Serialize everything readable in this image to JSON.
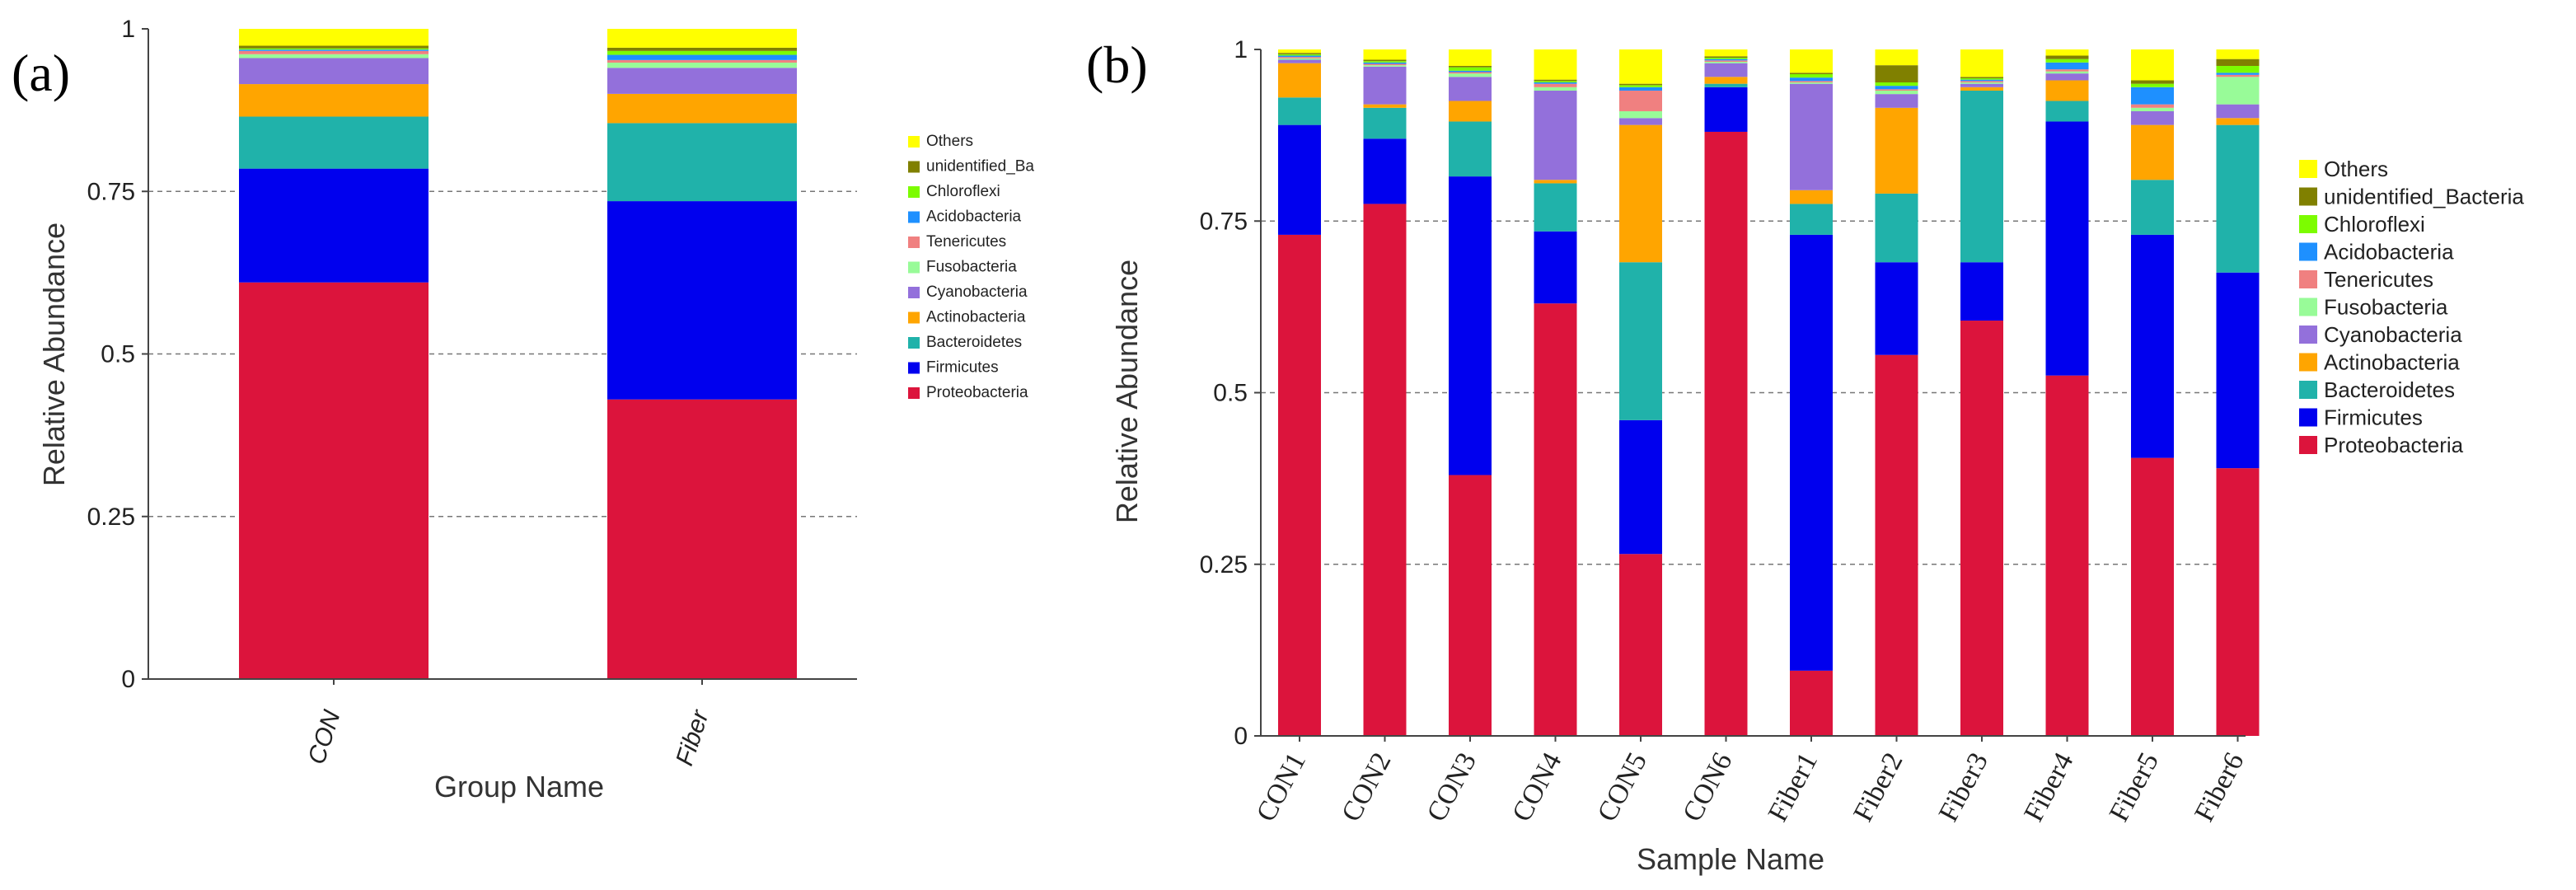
{
  "chart_data": [
    {
      "panel": "(a)",
      "type": "bar",
      "stacked": true,
      "xlabel": "Group Name",
      "ylabel": "Relative Abundance",
      "ylim": [
        0,
        1
      ],
      "yticks": [
        "0",
        "0.25",
        "0.5",
        "0.75",
        "1"
      ],
      "categories": [
        "CON",
        "Fiber"
      ],
      "grid": "horizontal dashed",
      "legend_position": "right",
      "legend": [
        "Others",
        "unidentified_Ba",
        "Chloroflexi",
        "Acidobacteria",
        "Tenericutes",
        "Fusobacteria",
        "Cyanobacteria",
        "Actinobacteria",
        "Bacteroidetes",
        "Firmicutes",
        "Proteobacteria"
      ],
      "series": [
        {
          "name": "Proteobacteria",
          "color": "#dc143c",
          "values": [
            0.61,
            0.43
          ]
        },
        {
          "name": "Firmicutes",
          "color": "#0000ee",
          "values": [
            0.175,
            0.305
          ]
        },
        {
          "name": "Bacteroidetes",
          "color": "#20b2aa",
          "values": [
            0.08,
            0.12
          ]
        },
        {
          "name": "Actinobacteria",
          "color": "#ffa500",
          "values": [
            0.05,
            0.045
          ]
        },
        {
          "name": "Cyanobacteria",
          "color": "#9370db",
          "values": [
            0.04,
            0.04
          ]
        },
        {
          "name": "Fusobacteria",
          "color": "#98fb98",
          "values": [
            0.006,
            0.008
          ]
        },
        {
          "name": "Tenericutes",
          "color": "#f08080",
          "values": [
            0.005,
            0.004
          ]
        },
        {
          "name": "Acidobacteria",
          "color": "#1e90ff",
          "values": [
            0.002,
            0.008
          ]
        },
        {
          "name": "Chloroflexi",
          "color": "#7cfc00",
          "values": [
            0.002,
            0.006
          ]
        },
        {
          "name": "unidentified_Bacteria",
          "color": "#808000",
          "values": [
            0.004,
            0.005
          ]
        },
        {
          "name": "Others",
          "color": "#ffff00",
          "values": [
            0.026,
            0.029
          ]
        }
      ]
    },
    {
      "panel": "(b)",
      "type": "bar",
      "stacked": true,
      "xlabel": "Sample Name",
      "ylabel": "Relative Abundance",
      "ylim": [
        0,
        1
      ],
      "yticks": [
        "0",
        "0.25",
        "0.5",
        "0.75",
        "1"
      ],
      "categories": [
        "CON1",
        "CON2",
        "CON3",
        "CON4",
        "CON5",
        "CON6",
        "Fiber1",
        "Fiber2",
        "Fiber3",
        "Fiber4",
        "Fiber5",
        "Fiber6"
      ],
      "grid": "horizontal dashed",
      "legend_position": "right",
      "legend": [
        "Others",
        "unidentified_Bacteria",
        "Chloroflexi",
        "Acidobacteria",
        "Tenericutes",
        "Fusobacteria",
        "Cyanobacteria",
        "Actinobacteria",
        "Bacteroidetes",
        "Firmicutes",
        "Proteobacteria"
      ],
      "series": [
        {
          "name": "Proteobacteria",
          "color": "#dc143c",
          "values": [
            0.73,
            0.775,
            0.38,
            0.63,
            0.265,
            0.88,
            0.095,
            0.555,
            0.605,
            0.525,
            0.405,
            0.39
          ]
        },
        {
          "name": "Firmicutes",
          "color": "#0000ee",
          "values": [
            0.16,
            0.095,
            0.435,
            0.105,
            0.195,
            0.065,
            0.635,
            0.135,
            0.085,
            0.37,
            0.325,
            0.285
          ]
        },
        {
          "name": "Bacteroidetes",
          "color": "#20b2aa",
          "values": [
            0.04,
            0.045,
            0.08,
            0.07,
            0.23,
            0.005,
            0.045,
            0.1,
            0.25,
            0.03,
            0.08,
            0.215
          ]
        },
        {
          "name": "Actinobacteria",
          "color": "#ffa500",
          "values": [
            0.05,
            0.005,
            0.03,
            0.005,
            0.2,
            0.01,
            0.02,
            0.125,
            0.005,
            0.03,
            0.08,
            0.01
          ]
        },
        {
          "name": "Cyanobacteria",
          "color": "#9370db",
          "values": [
            0.005,
            0.055,
            0.035,
            0.13,
            0.01,
            0.02,
            0.155,
            0.02,
            0.005,
            0.01,
            0.02,
            0.02
          ]
        },
        {
          "name": "Fusobacteria",
          "color": "#98fb98",
          "values": [
            0.002,
            0.002,
            0.005,
            0.005,
            0.01,
            0.002,
            0.002,
            0.005,
            0.002,
            0.003,
            0.005,
            0.04
          ]
        },
        {
          "name": "Tenericutes",
          "color": "#f08080",
          "values": [
            0.002,
            0.002,
            0.002,
            0.005,
            0.03,
            0.002,
            0.002,
            0.002,
            0.002,
            0.003,
            0.005,
            0.003
          ]
        },
        {
          "name": "Acidobacteria",
          "color": "#1e90ff",
          "values": [
            0.002,
            0.002,
            0.002,
            0.002,
            0.005,
            0.002,
            0.005,
            0.005,
            0.002,
            0.01,
            0.025,
            0.003
          ]
        },
        {
          "name": "Chloroflexi",
          "color": "#7cfc00",
          "values": [
            0.002,
            0.002,
            0.005,
            0.002,
            0.003,
            0.002,
            0.005,
            0.005,
            0.002,
            0.005,
            0.005,
            0.01
          ]
        },
        {
          "name": "unidentified_Bacteria",
          "color": "#808000",
          "values": [
            0.002,
            0.002,
            0.002,
            0.002,
            0.002,
            0.002,
            0.002,
            0.025,
            0.002,
            0.005,
            0.005,
            0.01
          ]
        },
        {
          "name": "Others",
          "color": "#ffff00",
          "values": [
            0.015,
            0.015,
            0.024,
            0.044,
            0.05,
            0.01,
            0.034,
            0.023,
            0.04,
            0.009,
            0.045,
            0.024
          ]
        }
      ]
    }
  ]
}
